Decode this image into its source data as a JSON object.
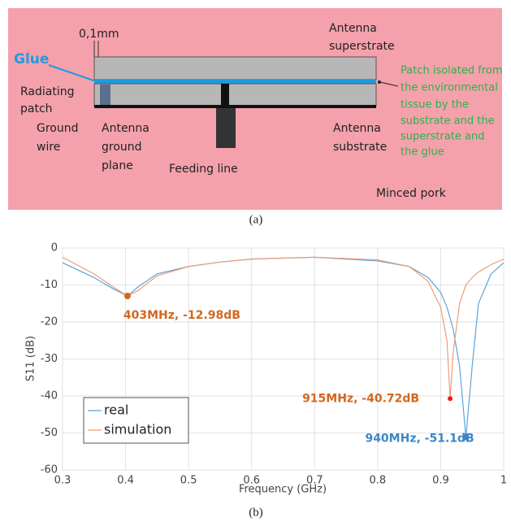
{
  "diagram": {
    "thickness": "0,1mm",
    "glue": "Glue",
    "superstrate": [
      "Antenna",
      "superstrate"
    ],
    "patch": [
      "Radiating",
      "patch"
    ],
    "wire": [
      "Ground",
      "wire"
    ],
    "ground_plane": [
      "Antenna",
      "ground",
      "plane"
    ],
    "substrate": [
      "Antenna",
      "substrate"
    ],
    "feeding": "Feeding line",
    "note": [
      "Patch isolated from",
      "the environmental",
      "tissue by the",
      "substrate and the",
      "superstrate and",
      "the glue"
    ],
    "medium": "Minced pork"
  },
  "captions": [
    "(a)",
    "(b)"
  ],
  "chart_data": {
    "type": "line",
    "xlabel": "Frequency (GHz)",
    "ylabel": "S11 (dB)",
    "x": [
      0.3,
      0.35,
      0.38,
      0.403,
      0.42,
      0.45,
      0.5,
      0.55,
      0.6,
      0.7,
      0.8,
      0.85,
      0.88,
      0.9,
      0.91,
      0.915,
      0.92,
      0.93,
      0.94,
      0.95,
      0.96,
      0.98,
      1.0
    ],
    "series": [
      {
        "name": "real",
        "color": "#5aa5dc",
        "values": [
          -4,
          -8,
          -11,
          -12.98,
          -10.5,
          -7,
          -5,
          -3.8,
          -3,
          -2.5,
          -3.5,
          -5,
          -8,
          -12,
          -16,
          -19,
          -22,
          -32,
          -51.1,
          -32,
          -15,
          -7,
          -4
        ]
      },
      {
        "name": "simulation",
        "color": "#ef9c78",
        "values": [
          -2.5,
          -7,
          -10.5,
          -12.98,
          -11.5,
          -7.5,
          -5,
          -3.8,
          -3,
          -2.5,
          -3.2,
          -5,
          -9,
          -16,
          -25,
          -40.72,
          -28,
          -15,
          -10,
          -8,
          -6.5,
          -4.5,
          -3
        ]
      }
    ],
    "annotations": [
      {
        "label": "403MHz, -12.98dB",
        "x": 0.403,
        "y": -12.98,
        "color": "#d3671f"
      },
      {
        "label": "915MHz, -40.72dB",
        "x": 0.915,
        "y": -40.72,
        "color": "#d3671f"
      },
      {
        "label": "940MHz, -51.1dB",
        "x": 0.94,
        "y": -51.1,
        "color": "#3d86c6"
      }
    ],
    "xlim": [
      0.3,
      1
    ],
    "xticks": [
      0.3,
      0.4,
      0.5,
      0.6,
      0.7,
      0.8,
      0.9,
      1
    ],
    "ylim": [
      -60,
      0
    ],
    "yticks": [
      0,
      -10,
      -20,
      -30,
      -40,
      -50,
      -60
    ],
    "grid": true,
    "legend": "lower left"
  }
}
